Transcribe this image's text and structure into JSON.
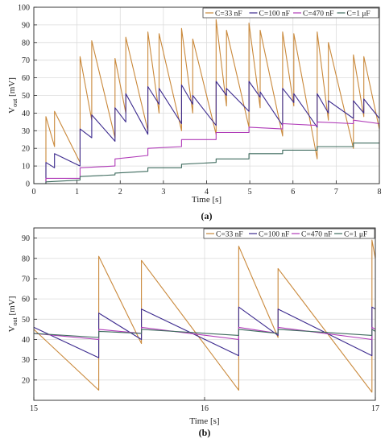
{
  "colors": {
    "c33": "#C9883A",
    "c100": "#3C2A8E",
    "c470": "#B03BB8",
    "c1u": "#3E6B5E",
    "axis": "#262626",
    "grid": "#DCDCDC"
  },
  "chart_data": [
    {
      "type": "line",
      "caption": "(a)",
      "xlabel": "Time [s]",
      "ylabel": "V",
      "ylabel_sub": "out",
      "ylabel_unit": "[mV]",
      "xlim": [
        0,
        8
      ],
      "ylim": [
        0,
        100
      ],
      "xticks": [
        "0",
        "1",
        "2",
        "3",
        "4",
        "5",
        "6",
        "7",
        "8"
      ],
      "yticks": [
        "0",
        "10",
        "20",
        "30",
        "40",
        "50",
        "60",
        "70",
        "80",
        "90",
        "100"
      ],
      "grid": true,
      "legend_location": "top-right",
      "series": [
        {
          "name": "C=33 nF",
          "color": "#C9883A",
          "x": [
            0,
            0.28,
            0.28,
            0.48,
            0.48,
            1.07,
            1.07,
            1.34,
            1.34,
            1.88,
            1.88,
            2.13,
            2.13,
            2.64,
            2.64,
            2.9,
            2.9,
            3.42,
            3.42,
            3.68,
            3.68,
            4.22,
            4.22,
            4.46,
            4.46,
            4.98,
            4.98,
            5.24,
            5.24,
            5.76,
            5.76,
            6.02,
            6.02,
            6.56,
            6.56,
            6.82,
            6.82,
            7.4,
            7.4,
            7.64,
            7.64,
            8.0
          ],
          "y": [
            0,
            0,
            38,
            21,
            41,
            12,
            72,
            36,
            81,
            26,
            71,
            40,
            83,
            30,
            86,
            40,
            85,
            30,
            88,
            40,
            82,
            28,
            93,
            44,
            87,
            32,
            91,
            43,
            87,
            27,
            86,
            44,
            85,
            14,
            86,
            36,
            80,
            20,
            73,
            38,
            72,
            31
          ]
        },
        {
          "name": "C=100 nF",
          "color": "#3C2A8E",
          "x": [
            0,
            0.28,
            0.28,
            0.48,
            0.48,
            1.07,
            1.07,
            1.34,
            1.34,
            1.88,
            1.88,
            2.13,
            2.13,
            2.64,
            2.64,
            2.9,
            2.9,
            3.42,
            3.42,
            3.68,
            3.68,
            4.22,
            4.22,
            4.46,
            4.46,
            4.98,
            4.98,
            5.24,
            5.24,
            5.76,
            5.76,
            6.02,
            6.02,
            6.56,
            6.56,
            6.82,
            6.82,
            7.4,
            7.4,
            7.64,
            7.64,
            8.0
          ],
          "y": [
            0,
            0,
            12,
            9,
            17,
            10,
            31,
            26,
            39,
            24,
            43,
            35,
            51,
            28,
            55,
            45,
            54,
            34,
            56,
            45,
            50,
            33,
            58,
            50,
            54,
            41,
            58,
            49,
            52,
            33,
            54,
            46,
            51,
            32,
            51,
            40,
            47,
            37,
            47,
            40,
            48,
            37
          ]
        },
        {
          "name": "C=470 nF",
          "color": "#B03BB8",
          "x": [
            0,
            0.28,
            0.28,
            1.07,
            1.07,
            1.88,
            1.88,
            2.64,
            2.64,
            3.42,
            3.42,
            4.22,
            4.22,
            4.98,
            4.98,
            5.76,
            5.76,
            6.56,
            6.56,
            7.4,
            7.4,
            8.0
          ],
          "y": [
            0,
            0,
            3,
            3,
            9,
            10,
            14,
            16,
            20,
            21,
            25,
            25,
            29,
            29,
            32,
            31,
            34,
            33,
            35,
            34,
            36,
            34
          ]
        },
        {
          "name": "C=1 μF",
          "color": "#3E6B5E",
          "x": [
            0,
            0.28,
            0.28,
            1.07,
            1.07,
            1.88,
            1.88,
            2.64,
            2.64,
            3.42,
            3.42,
            4.22,
            4.22,
            4.98,
            4.98,
            5.76,
            5.76,
            6.56,
            6.56,
            7.4,
            7.4,
            8.0
          ],
          "y": [
            0,
            0,
            1,
            2,
            4,
            5,
            6,
            7,
            9,
            9,
            11,
            12,
            14,
            14,
            17,
            17,
            19,
            19,
            21,
            21,
            23,
            23
          ]
        }
      ]
    },
    {
      "type": "line",
      "caption": "(b)",
      "xlabel": "Time [s]",
      "ylabel": "V",
      "ylabel_sub": "out",
      "ylabel_unit": "[mV]",
      "xlim": [
        15,
        17
      ],
      "ylim": [
        10,
        95
      ],
      "xticks": [
        "15",
        "16",
        "17"
      ],
      "yticks": [
        "20",
        "30",
        "40",
        "50",
        "60",
        "70",
        "80",
        "90"
      ],
      "grid": true,
      "legend_location": "top-right",
      "series": [
        {
          "name": "C=33 nF",
          "color": "#C9883A",
          "x": [
            15.0,
            15.38,
            15.38,
            15.63,
            15.63,
            16.2,
            16.2,
            16.43,
            16.43,
            16.98,
            16.98,
            17.0
          ],
          "y": [
            45,
            15,
            81,
            38,
            79,
            15,
            86,
            41,
            75,
            14,
            89,
            80
          ]
        },
        {
          "name": "C=100 nF",
          "color": "#3C2A8E",
          "x": [
            15.0,
            15.38,
            15.38,
            15.63,
            15.63,
            16.2,
            16.2,
            16.43,
            16.43,
            16.98,
            16.98,
            17.0
          ],
          "y": [
            46,
            31,
            53,
            40,
            55,
            32,
            56,
            42,
            55,
            32,
            56,
            55
          ]
        },
        {
          "name": "C=470 nF",
          "color": "#B03BB8",
          "x": [
            15.0,
            15.38,
            15.38,
            15.63,
            15.63,
            16.2,
            16.2,
            16.43,
            16.43,
            16.98,
            16.98,
            17.0
          ],
          "y": [
            43,
            40,
            45,
            43,
            46,
            40,
            46,
            43,
            46,
            40,
            46,
            45
          ]
        },
        {
          "name": "C=1 μF",
          "color": "#3E6B5E",
          "x": [
            15.0,
            15.38,
            15.38,
            15.63,
            15.63,
            16.2,
            16.2,
            16.43,
            16.43,
            16.98,
            16.98,
            17.0
          ],
          "y": [
            43,
            41,
            44,
            43,
            45,
            42,
            45,
            43,
            45,
            42,
            45,
            44
          ]
        }
      ]
    }
  ]
}
